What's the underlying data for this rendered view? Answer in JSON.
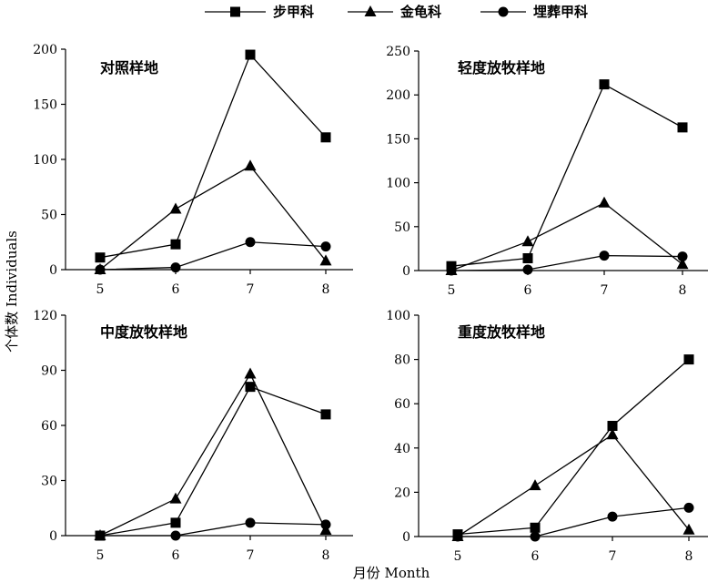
{
  "legend": [
    {
      "name": "步甲科",
      "marker": "square"
    },
    {
      "name": "金龟科",
      "marker": "triangle"
    },
    {
      "name": "埋葬甲科",
      "marker": "circle"
    }
  ],
  "ylabel": "个体数 Individuals",
  "xlabel": "月份 Month",
  "chart_data": [
    {
      "type": "line",
      "title": "对照样地",
      "x": [
        5,
        6,
        7,
        8
      ],
      "ylim": [
        0,
        200
      ],
      "yticks": [
        0,
        50,
        100,
        150,
        200
      ],
      "series": [
        {
          "name": "步甲科",
          "marker": "square",
          "values": [
            11,
            23,
            195,
            120
          ]
        },
        {
          "name": "金龟科",
          "marker": "triangle",
          "values": [
            0,
            55,
            94,
            8
          ]
        },
        {
          "name": "埋葬甲科",
          "marker": "circle",
          "values": [
            0,
            2,
            25,
            21
          ]
        }
      ]
    },
    {
      "type": "line",
      "title": "轻度放牧样地",
      "x": [
        5,
        6,
        7,
        8
      ],
      "ylim": [
        0,
        250
      ],
      "yticks": [
        0,
        50,
        100,
        150,
        200,
        250
      ],
      "series": [
        {
          "name": "步甲科",
          "marker": "square",
          "values": [
            5,
            14,
            212,
            163
          ]
        },
        {
          "name": "金龟科",
          "marker": "triangle",
          "values": [
            0,
            33,
            77,
            7
          ]
        },
        {
          "name": "埋葬甲科",
          "marker": "circle",
          "values": [
            0,
            1,
            17,
            16
          ]
        }
      ]
    },
    {
      "type": "line",
      "title": "中度放牧样地",
      "x": [
        5,
        6,
        7,
        8
      ],
      "ylim": [
        0,
        120
      ],
      "yticks": [
        0,
        30,
        60,
        90,
        120
      ],
      "series": [
        {
          "name": "步甲科",
          "marker": "square",
          "values": [
            0,
            7,
            81,
            66
          ]
        },
        {
          "name": "金龟科",
          "marker": "triangle",
          "values": [
            0,
            20,
            88,
            3
          ]
        },
        {
          "name": "埋葬甲科",
          "marker": "circle",
          "values": [
            0,
            0,
            7,
            6
          ]
        }
      ]
    },
    {
      "type": "line",
      "title": "重度放牧样地",
      "x": [
        5,
        6,
        7,
        8
      ],
      "ylim": [
        0,
        100
      ],
      "yticks": [
        0,
        20,
        40,
        60,
        80,
        100
      ],
      "series": [
        {
          "name": "步甲科",
          "marker": "square",
          "values": [
            1,
            4,
            50,
            80
          ]
        },
        {
          "name": "金龟科",
          "marker": "triangle",
          "values": [
            0,
            23,
            46,
            3
          ]
        },
        {
          "name": "埋葬甲科",
          "marker": "circle",
          "values": [
            0,
            0,
            9,
            13
          ]
        }
      ]
    }
  ]
}
